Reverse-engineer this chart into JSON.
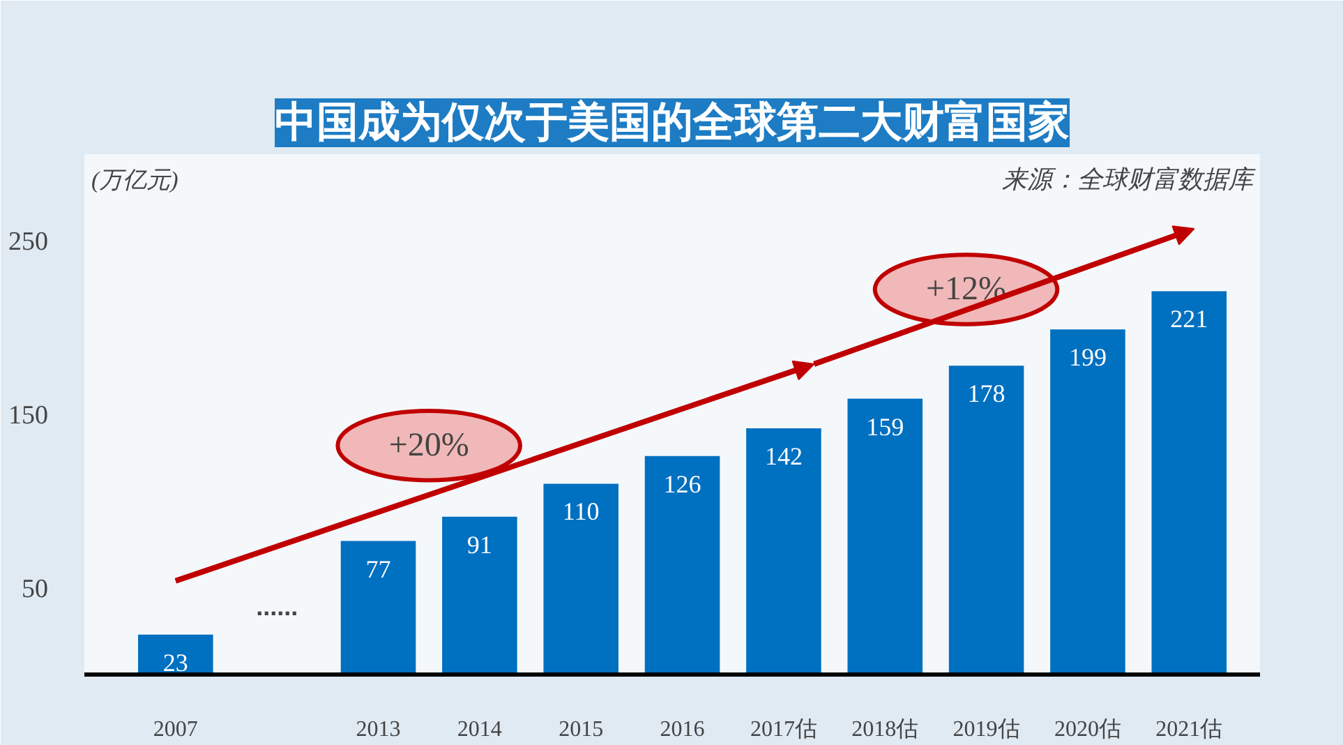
{
  "chart_data": {
    "type": "bar",
    "title": "中国成为仅次于美国的全球第二大财富国家",
    "ylabel": "(万亿元)",
    "categories": [
      "2007",
      null,
      "2013",
      "2014",
      "2015",
      "2016",
      "2017估",
      "2018估",
      "2019估",
      "2020估",
      "2021估"
    ],
    "values": [
      23,
      null,
      77,
      91,
      110,
      126,
      142,
      159,
      178,
      199,
      221
    ],
    "color": "#0070c0",
    "ylim": [
      0,
      300
    ],
    "yticks": [
      50,
      150,
      250
    ],
    "data_labels": true,
    "grid": false,
    "annotations": [
      "......",
      "+20%",
      "+12%",
      "来源：全球财富数据库"
    ]
  }
}
